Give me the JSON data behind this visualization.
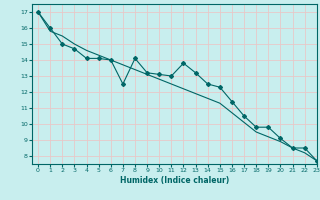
{
  "xlabel": "Humidex (Indice chaleur)",
  "background_color": "#c8eeee",
  "grid_color": "#e8c8c8",
  "line_color": "#006666",
  "xlim": [
    -0.5,
    23
  ],
  "ylim": [
    7.5,
    17.5
  ],
  "yticks": [
    8,
    9,
    10,
    11,
    12,
    13,
    14,
    15,
    16,
    17
  ],
  "xticks": [
    0,
    1,
    2,
    3,
    4,
    5,
    6,
    7,
    8,
    9,
    10,
    11,
    12,
    13,
    14,
    15,
    16,
    17,
    18,
    19,
    20,
    21,
    22,
    23
  ],
  "series1_x": [
    0,
    1,
    2,
    3,
    4,
    5,
    6,
    7,
    8,
    9,
    10,
    11,
    12,
    13,
    14,
    15,
    16,
    17,
    18,
    19,
    20,
    21,
    22,
    23
  ],
  "series1_y": [
    17.0,
    16.0,
    15.0,
    14.7,
    14.1,
    14.1,
    14.0,
    12.5,
    14.1,
    13.2,
    13.1,
    13.0,
    13.8,
    13.2,
    12.5,
    12.3,
    11.4,
    10.5,
    9.8,
    9.8,
    9.1,
    8.5,
    8.5,
    7.7
  ],
  "series2_x": [
    0,
    1,
    2,
    3,
    4,
    5,
    6,
    7,
    8,
    9,
    10,
    11,
    12,
    13,
    14,
    15,
    16,
    17,
    18,
    19,
    20,
    21,
    22,
    23
  ],
  "series2_y": [
    17.0,
    15.8,
    15.5,
    15.0,
    14.6,
    14.3,
    14.0,
    13.7,
    13.4,
    13.1,
    12.8,
    12.5,
    12.2,
    11.9,
    11.6,
    11.3,
    10.7,
    10.1,
    9.5,
    9.2,
    8.9,
    8.5,
    8.2,
    7.7
  ]
}
